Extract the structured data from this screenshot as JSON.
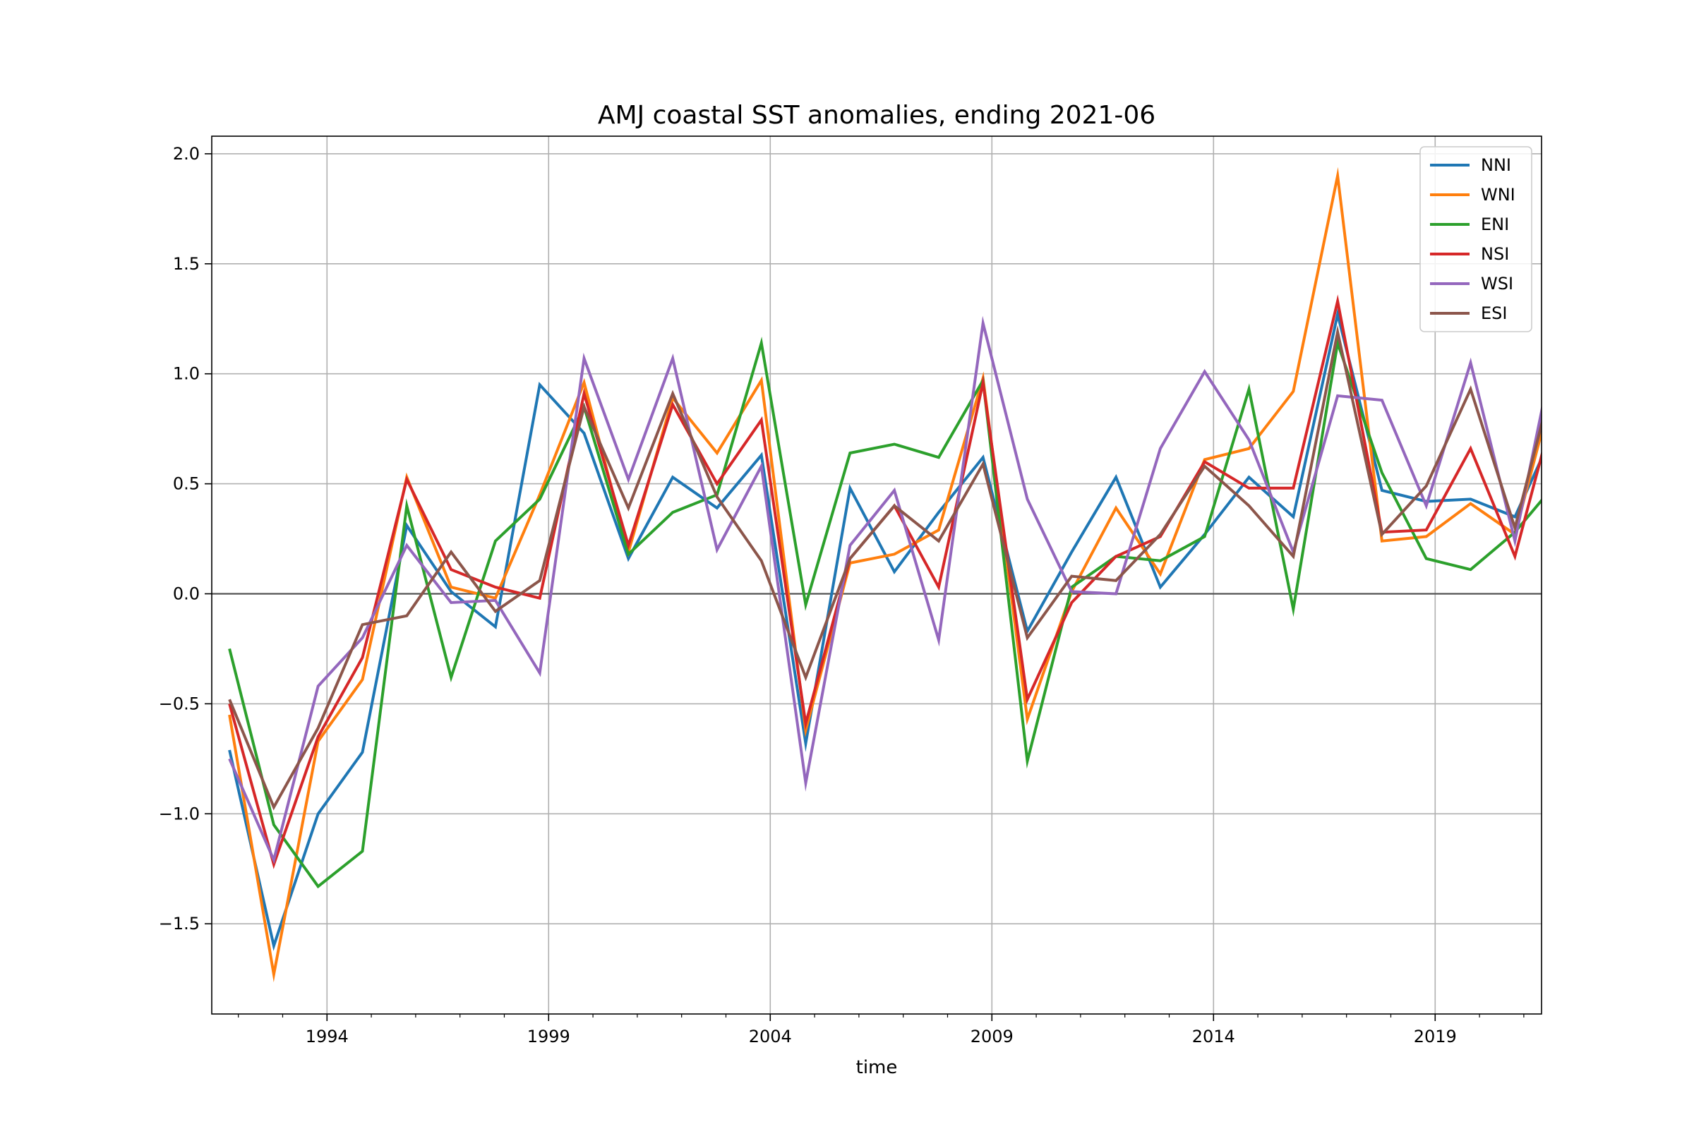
{
  "chart_data": {
    "type": "line",
    "title": "AMJ coastal SST anomalies, ending 2021-06",
    "xlabel": "time",
    "ylabel": "",
    "x": [
      1991.8,
      1992.8,
      1993.8,
      1994.8,
      1995.8,
      1996.8,
      1997.8,
      1998.8,
      1999.8,
      2000.8,
      2001.8,
      2002.8,
      2003.8,
      2004.8,
      2005.8,
      2006.8,
      2007.8,
      2008.8,
      2009.8,
      2010.8,
      2011.8,
      2012.8,
      2013.8,
      2014.8,
      2015.8,
      2016.8,
      2017.8,
      2018.8,
      2019.8,
      2020.8,
      2021.8
    ],
    "xlim": [
      1991.4,
      2021.4
    ],
    "ylim": [
      -1.91,
      2.08
    ],
    "x_ticks": [
      1994,
      1999,
      2004,
      2009,
      2014,
      2019
    ],
    "x_tick_labels": [
      "1994",
      "1999",
      "2004",
      "2009",
      "2014",
      "2019"
    ],
    "y_ticks": [
      -1.5,
      -1.0,
      -0.5,
      0.0,
      0.5,
      1.0,
      1.5,
      2.0
    ],
    "y_tick_labels": [
      "−1.5",
      "−1.0",
      "−0.5",
      "0.0",
      "0.5",
      "1.0",
      "1.5",
      "2.0"
    ],
    "grid": true,
    "zero_line": true,
    "legend": "top-right",
    "series": [
      {
        "name": "NNI",
        "color": "#1f77b4",
        "values": [
          -0.71,
          -1.6,
          -1.0,
          -0.72,
          0.31,
          0.01,
          -0.15,
          0.95,
          0.73,
          0.16,
          0.53,
          0.39,
          0.63,
          -0.68,
          0.48,
          0.1,
          0.37,
          0.62,
          -0.17,
          0.19,
          0.53,
          0.03,
          0.27,
          0.53,
          0.35,
          1.27,
          0.47,
          0.42,
          0.43,
          0.35,
          0.79
        ]
      },
      {
        "name": "WNI",
        "color": "#ff7f0e",
        "values": [
          -0.55,
          -1.73,
          -0.67,
          -0.39,
          0.53,
          0.03,
          -0.02,
          0.45,
          0.96,
          0.19,
          0.89,
          0.64,
          0.97,
          -0.62,
          0.14,
          0.18,
          0.29,
          0.98,
          -0.57,
          0.01,
          0.39,
          0.09,
          0.61,
          0.66,
          0.92,
          1.9,
          0.24,
          0.26,
          0.41,
          0.27,
          1.04
        ]
      },
      {
        "name": "ENI",
        "color": "#2ca02c",
        "values": [
          -0.25,
          -1.05,
          -1.33,
          -1.17,
          0.4,
          -0.38,
          0.24,
          0.43,
          0.85,
          0.18,
          0.37,
          0.45,
          1.14,
          -0.05,
          0.64,
          0.68,
          0.62,
          0.97,
          -0.76,
          0.03,
          0.17,
          0.15,
          0.26,
          0.93,
          -0.07,
          1.14,
          0.55,
          0.16,
          0.11,
          0.28,
          0.52
        ]
      },
      {
        "name": "NSI",
        "color": "#d62728",
        "values": [
          -0.5,
          -1.23,
          -0.65,
          -0.29,
          0.52,
          0.11,
          0.03,
          -0.02,
          0.91,
          0.22,
          0.86,
          0.5,
          0.79,
          -0.59,
          0.16,
          0.4,
          0.03,
          0.96,
          -0.48,
          -0.04,
          0.17,
          0.26,
          0.6,
          0.48,
          0.48,
          1.33,
          0.28,
          0.29,
          0.66,
          0.17,
          0.93
        ]
      },
      {
        "name": "WSI",
        "color": "#9467bd",
        "values": [
          -0.75,
          -1.21,
          -0.42,
          -0.2,
          0.22,
          -0.04,
          -0.03,
          -0.36,
          1.07,
          0.52,
          1.07,
          0.2,
          0.58,
          -0.86,
          0.22,
          0.47,
          -0.21,
          1.23,
          0.43,
          0.01,
          0.0,
          0.66,
          1.01,
          0.7,
          0.19,
          0.9,
          0.88,
          0.4,
          1.05,
          0.24,
          1.22
        ]
      },
      {
        "name": "ESI",
        "color": "#8c564b",
        "values": [
          -0.48,
          -0.97,
          -0.61,
          -0.14,
          -0.1,
          0.19,
          -0.08,
          0.06,
          0.85,
          0.39,
          0.91,
          0.44,
          0.15,
          -0.38,
          0.16,
          0.4,
          0.24,
          0.59,
          -0.2,
          0.08,
          0.06,
          0.27,
          0.58,
          0.4,
          0.17,
          1.19,
          0.27,
          0.49,
          0.93,
          0.3,
          1.08
        ]
      }
    ]
  }
}
